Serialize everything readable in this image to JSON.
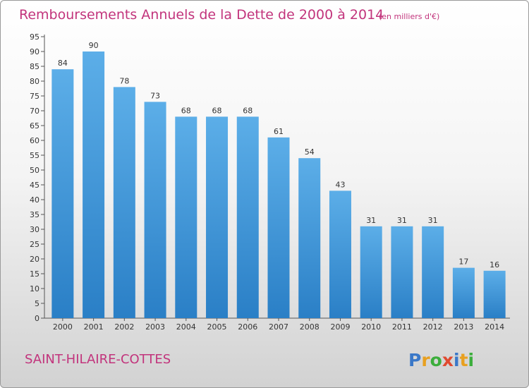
{
  "chart_data": {
    "type": "bar",
    "title": "Remboursements Annuels de la Dette de 2000 à 2014",
    "subtitle": "(en milliers d'€)",
    "categories": [
      "2000",
      "2001",
      "2002",
      "2003",
      "2004",
      "2005",
      "2006",
      "2007",
      "2008",
      "2009",
      "2010",
      "2011",
      "2012",
      "2013",
      "2014"
    ],
    "values": [
      84,
      90,
      78,
      73,
      68,
      68,
      68,
      61,
      54,
      43,
      31,
      31,
      31,
      17,
      16
    ],
    "xlabel": "",
    "ylabel": "",
    "ylim": [
      0,
      95
    ],
    "yticks": [
      0,
      5,
      10,
      15,
      20,
      25,
      30,
      35,
      40,
      45,
      50,
      55,
      60,
      65,
      70,
      75,
      80,
      85,
      90,
      95
    ],
    "grid": false,
    "colors": {
      "bar_top": "#5caee8",
      "bar_bottom": "#2a7fc6",
      "title": "#c2347c"
    }
  },
  "commune": "SAINT-HILAIRE-COTTES",
  "brand": {
    "name": "Proxiti"
  }
}
